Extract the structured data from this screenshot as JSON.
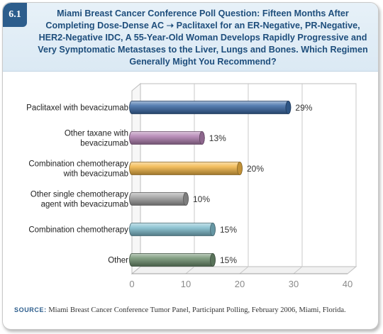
{
  "figure": {
    "number": "6.1",
    "title": "Miami Breast Cancer Conference Poll Question: Fifteen Months After Completing Dose-Dense AC ➝ Paclitaxel for an ER-Negative, PR-Negative, HER2-Negative IDC, A 55-Year-Old Woman Develops Rapidly Progressive and Very Symptomatic Metastases to the Liver, Lungs and Bones. Which Regimen Generally Might You Recommend?",
    "source_label": "SOURCE:",
    "source_text": "Miami Breast Cancer Conference Tumor Panel, Participant Polling, February 2006, Miami, Florida."
  },
  "chart_data": {
    "type": "bar",
    "orientation": "horizontal",
    "style": "3d-cylinder",
    "categories": [
      [
        "Paclitaxel with bevacizumab"
      ],
      [
        "Other taxane with",
        "bevacizumab"
      ],
      [
        "Combination chemotherapy",
        "with bevacizumab"
      ],
      [
        "Other single chemotherapy",
        "agent with bevacizumab"
      ],
      [
        "Combination chemotherapy"
      ],
      [
        "Other"
      ]
    ],
    "values": [
      29,
      13,
      20,
      10,
      15,
      15
    ],
    "value_labels": [
      "29%",
      "13%",
      "20%",
      "10%",
      "15%",
      "15%"
    ],
    "bar_colors": [
      "#3a6aa5",
      "#b07fb0",
      "#f2b545",
      "#9e9e9e",
      "#7fbccc",
      "#6f9070"
    ],
    "xlim": [
      0,
      40
    ],
    "xticks": [
      0,
      10,
      20,
      30,
      40
    ],
    "xlabel": "",
    "ylabel": "",
    "grid": true
  }
}
